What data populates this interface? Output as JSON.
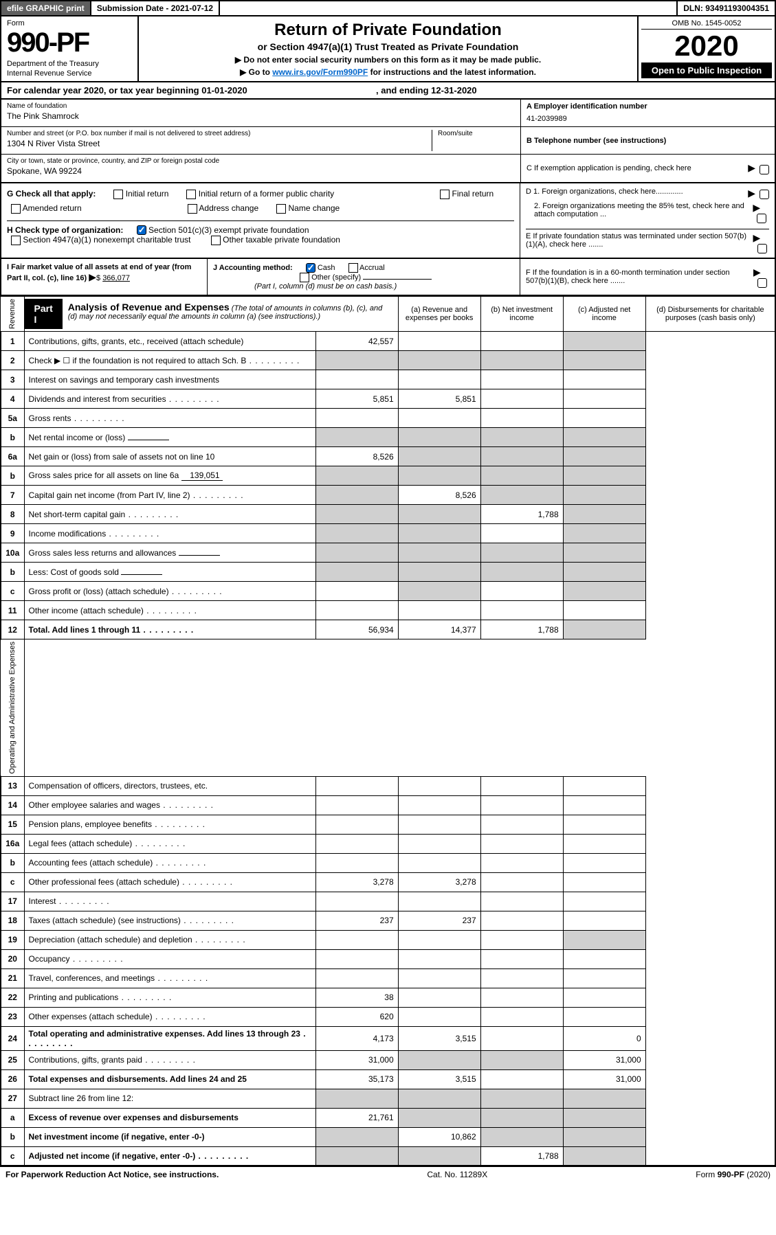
{
  "topbar": {
    "efile": "efile GRAPHIC print",
    "subdate_label": "Submission Date - 2021-07-12",
    "dln": "DLN: 93491193004351"
  },
  "header": {
    "form_word": "Form",
    "form_num": "990-PF",
    "dept": "Department of the Treasury",
    "irs": "Internal Revenue Service",
    "title": "Return of Private Foundation",
    "subtitle": "or Section 4947(a)(1) Trust Treated as Private Foundation",
    "note1": "▶ Do not enter social security numbers on this form as it may be made public.",
    "note2_pre": "▶ Go to ",
    "note2_link": "www.irs.gov/Form990PF",
    "note2_post": " for instructions and the latest information.",
    "omb": "OMB No. 1545-0052",
    "year": "2020",
    "open": "Open to Public Inspection"
  },
  "calyear": {
    "text": "For calendar year 2020, or tax year beginning 01-01-2020",
    "ending": ", and ending 12-31-2020"
  },
  "info": {
    "name_lbl": "Name of foundation",
    "name_val": "The Pink Shamrock",
    "addr_lbl": "Number and street (or P.O. box number if mail is not delivered to street address)",
    "addr_val": "1304 N River Vista Street",
    "room_lbl": "Room/suite",
    "city_lbl": "City or town, state or province, country, and ZIP or foreign postal code",
    "city_val": "Spokane, WA  99224",
    "ein_lbl": "A Employer identification number",
    "ein_val": "41-2039989",
    "tel_lbl": "B Telephone number (see instructions)",
    "pending_lbl": "C If exemption application is pending, check here"
  },
  "sectionG": {
    "label": "G Check all that apply:",
    "opts": [
      "Initial return",
      "Initial return of a former public charity",
      "Final return",
      "Amended return",
      "Address change",
      "Name change"
    ]
  },
  "sectionD": {
    "d1": "D 1. Foreign organizations, check here.............",
    "d2": "2. Foreign organizations meeting the 85% test, check here and attach computation ...",
    "e": "E  If private foundation status was terminated under section 507(b)(1)(A), check here .......",
    "f": "F  If the foundation is in a 60-month termination under section 507(b)(1)(B), check here ......."
  },
  "sectionH": {
    "label": "H Check type of organization:",
    "opt1": "Section 501(c)(3) exempt private foundation",
    "opt2": "Section 4947(a)(1) nonexempt charitable trust",
    "opt3": "Other taxable private foundation"
  },
  "sectionI": {
    "label": "I Fair market value of all assets at end of year (from Part II, col. (c), line 16)",
    "val": "366,077"
  },
  "sectionJ": {
    "label": "J Accounting method:",
    "cash": "Cash",
    "accrual": "Accrual",
    "other": "Other (specify)",
    "note": "(Part I, column (d) must be on cash basis.)"
  },
  "part1": {
    "label": "Part I",
    "title": "Analysis of Revenue and Expenses",
    "title_note": " (The total of amounts in columns (b), (c), and (d) may not necessarily equal the amounts in column (a) (see instructions).)",
    "cols": {
      "a": "(a)   Revenue and expenses per books",
      "b": "(b)   Net investment income",
      "c": "(c)   Adjusted net income",
      "d": "(d)  Disbursements for charitable purposes (cash basis only)"
    }
  },
  "side_labels": {
    "rev": "Revenue",
    "exp": "Operating and Administrative Expenses"
  },
  "rows": [
    {
      "n": "1",
      "d": "Contributions, gifts, grants, etc., received (attach schedule)",
      "a": "42,557",
      "greyD": true
    },
    {
      "n": "2",
      "d": "Check ▶ ☐ if the foundation is not required to attach Sch. B",
      "greyA": true,
      "greyB": true,
      "greyC": true,
      "greyD": true,
      "dots": true
    },
    {
      "n": "3",
      "d": "Interest on savings and temporary cash investments"
    },
    {
      "n": "4",
      "d": "Dividends and interest from securities",
      "a": "5,851",
      "b": "5,851",
      "dots": true
    },
    {
      "n": "5a",
      "d": "Gross rents",
      "dots": true
    },
    {
      "n": "b",
      "d": "Net rental income or (loss)",
      "inline": "",
      "greyA": true,
      "greyB": true,
      "greyC": true,
      "greyD": true
    },
    {
      "n": "6a",
      "d": "Net gain or (loss) from sale of assets not on line 10",
      "a": "8,526",
      "greyB": true,
      "greyC": true,
      "greyD": true
    },
    {
      "n": "b",
      "d": "Gross sales price for all assets on line 6a",
      "inline": "139,051",
      "greyA": true,
      "greyB": true,
      "greyC": true,
      "greyD": true
    },
    {
      "n": "7",
      "d": "Capital gain net income (from Part IV, line 2)",
      "b": "8,526",
      "greyA": true,
      "greyC": true,
      "greyD": true,
      "dots": true
    },
    {
      "n": "8",
      "d": "Net short-term capital gain",
      "c": "1,788",
      "greyA": true,
      "greyB": true,
      "greyD": true,
      "dots": true
    },
    {
      "n": "9",
      "d": "Income modifications",
      "greyA": true,
      "greyB": true,
      "greyD": true,
      "dots": true
    },
    {
      "n": "10a",
      "d": "Gross sales less returns and allowances",
      "inline": "",
      "greyA": true,
      "greyB": true,
      "greyC": true,
      "greyD": true
    },
    {
      "n": "b",
      "d": "Less: Cost of goods sold",
      "inline": "",
      "greyA": true,
      "greyB": true,
      "greyC": true,
      "greyD": true,
      "dots": true
    },
    {
      "n": "c",
      "d": "Gross profit or (loss) (attach schedule)",
      "greyB": true,
      "greyD": true,
      "dots": true
    },
    {
      "n": "11",
      "d": "Other income (attach schedule)",
      "dots": true
    },
    {
      "n": "12",
      "d": "Total. Add lines 1 through 11",
      "a": "56,934",
      "b": "14,377",
      "c": "1,788",
      "greyD": true,
      "bold": true,
      "dots": true
    }
  ],
  "rows_exp": [
    {
      "n": "13",
      "d": "Compensation of officers, directors, trustees, etc."
    },
    {
      "n": "14",
      "d": "Other employee salaries and wages",
      "dots": true
    },
    {
      "n": "15",
      "d": "Pension plans, employee benefits",
      "dots": true
    },
    {
      "n": "16a",
      "d": "Legal fees (attach schedule)",
      "dots": true
    },
    {
      "n": "b",
      "d": "Accounting fees (attach schedule)",
      "dots": true
    },
    {
      "n": "c",
      "d": "Other professional fees (attach schedule)",
      "a": "3,278",
      "b": "3,278",
      "dots": true
    },
    {
      "n": "17",
      "d": "Interest",
      "dots": true
    },
    {
      "n": "18",
      "d": "Taxes (attach schedule) (see instructions)",
      "a": "237",
      "b": "237",
      "dots": true
    },
    {
      "n": "19",
      "d": "Depreciation (attach schedule) and depletion",
      "greyD": true,
      "dots": true
    },
    {
      "n": "20",
      "d": "Occupancy",
      "dots": true
    },
    {
      "n": "21",
      "d": "Travel, conferences, and meetings",
      "dots": true
    },
    {
      "n": "22",
      "d": "Printing and publications",
      "a": "38",
      "dots": true
    },
    {
      "n": "23",
      "d": "Other expenses (attach schedule)",
      "a": "620",
      "dots": true
    },
    {
      "n": "24",
      "d": "Total operating and administrative expenses. Add lines 13 through 23",
      "a": "4,173",
      "b": "3,515",
      "d_": "0",
      "bold": true,
      "dots": true
    },
    {
      "n": "25",
      "d": "Contributions, gifts, grants paid",
      "a": "31,000",
      "d_": "31,000",
      "greyB": true,
      "greyC": true,
      "dots": true
    },
    {
      "n": "26",
      "d": "Total expenses and disbursements. Add lines 24 and 25",
      "a": "35,173",
      "b": "3,515",
      "d_": "31,000",
      "bold": true
    },
    {
      "n": "27",
      "d": "Subtract line 26 from line 12:",
      "greyA": true,
      "greyB": true,
      "greyC": true,
      "greyD": true
    },
    {
      "n": "a",
      "d": "Excess of revenue over expenses and disbursements",
      "a": "21,761",
      "greyB": true,
      "greyC": true,
      "greyD": true,
      "bold": true
    },
    {
      "n": "b",
      "d": "Net investment income (if negative, enter -0-)",
      "b": "10,862",
      "greyA": true,
      "greyC": true,
      "greyD": true,
      "bold": true
    },
    {
      "n": "c",
      "d": "Adjusted net income (if negative, enter -0-)",
      "c": "1,788",
      "greyA": true,
      "greyB": true,
      "greyD": true,
      "bold": true,
      "dots": true
    }
  ],
  "footer": {
    "left": "For Paperwork Reduction Act Notice, see instructions.",
    "mid": "Cat. No. 11289X",
    "right": "Form 990-PF (2020)"
  }
}
